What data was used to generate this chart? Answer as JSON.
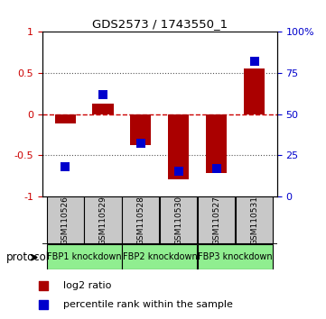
{
  "title": "GDS2573 / 1743550_1",
  "samples": [
    "GSM110526",
    "GSM110529",
    "GSM110528",
    "GSM110530",
    "GSM110527",
    "GSM110531"
  ],
  "log2_ratio": [
    -0.12,
    0.13,
    -0.38,
    -0.8,
    -0.72,
    0.55
  ],
  "percentile_rank": [
    18,
    62,
    32,
    15,
    17,
    82
  ],
  "ylim_left": [
    -1.0,
    1.0
  ],
  "ylim_right": [
    0,
    100
  ],
  "yticks_left": [
    -1,
    -0.5,
    0,
    0.5,
    1
  ],
  "yticks_right": [
    0,
    25,
    50,
    75,
    100
  ],
  "bar_color": "#AA0000",
  "dot_color": "#0000CC",
  "zero_line_color": "#CC0000",
  "dotted_line_color": "#555555",
  "bg_color": "#ffffff",
  "sample_box_color": "#C8C8C8",
  "protocol_box_color": "#90EE90",
  "legend_red_label": "log2 ratio",
  "legend_blue_label": "percentile rank within the sample",
  "protocol_label": "protocol",
  "bar_width": 0.55,
  "dot_size": 55,
  "proto_groups": [
    {
      "label": "FBP1 knockdown",
      "start": 0,
      "end": 1
    },
    {
      "label": "FBP2 knockdown",
      "start": 2,
      "end": 3
    },
    {
      "label": "FBP3 knockdown",
      "start": 4,
      "end": 5
    }
  ]
}
